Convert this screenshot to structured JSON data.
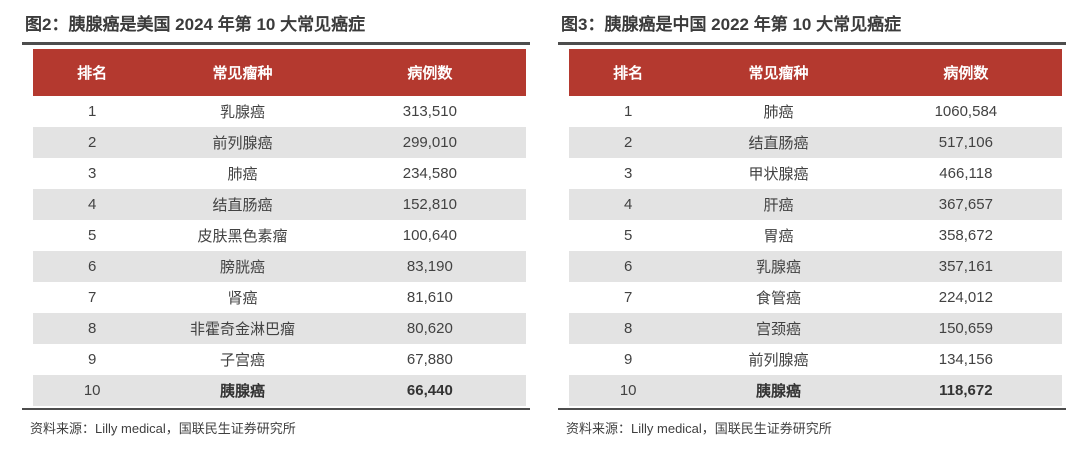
{
  "colors": {
    "header_bg": "#B4392F",
    "header_text": "#FFFFFF",
    "row_even_bg": "#E3E3E3",
    "row_odd_bg": "#FFFFFF",
    "cell_text": "#424242",
    "title_text": "#3B3B3B",
    "rule": "#4D4D4D",
    "source_text": "#3F3F3F"
  },
  "chart_data": [
    {
      "type": "table",
      "title": "图2：胰腺癌是美国 2024 年第 10 大常见癌症",
      "columns": [
        "排名",
        "常见瘤种",
        "病例数"
      ],
      "rows": [
        [
          "1",
          "乳腺癌",
          "313,510"
        ],
        [
          "2",
          "前列腺癌",
          "299,010"
        ],
        [
          "3",
          "肺癌",
          "234,580"
        ],
        [
          "4",
          "结直肠癌",
          "152,810"
        ],
        [
          "5",
          "皮肤黑色素瘤",
          "100,640"
        ],
        [
          "6",
          "膀胱癌",
          "83,190"
        ],
        [
          "7",
          "肾癌",
          "81,610"
        ],
        [
          "8",
          "非霍奇金淋巴瘤",
          "80,620"
        ],
        [
          "9",
          "子宫癌",
          "67,880"
        ],
        [
          "10",
          "胰腺癌",
          "66,440"
        ]
      ],
      "highlight_row_index": 9,
      "source": "资料来源：Lilly medical，国联民生证券研究所"
    },
    {
      "type": "table",
      "title": "图3：胰腺癌是中国 2022 年第 10 大常见癌症",
      "columns": [
        "排名",
        "常见瘤种",
        "病例数"
      ],
      "rows": [
        [
          "1",
          "肺癌",
          "1060,584"
        ],
        [
          "2",
          "结直肠癌",
          "517,106"
        ],
        [
          "3",
          "甲状腺癌",
          "466,118"
        ],
        [
          "4",
          "肝癌",
          "367,657"
        ],
        [
          "5",
          "胃癌",
          "358,672"
        ],
        [
          "6",
          "乳腺癌",
          "357,161"
        ],
        [
          "7",
          "食管癌",
          "224,012"
        ],
        [
          "8",
          "宫颈癌",
          "150,659"
        ],
        [
          "9",
          "前列腺癌",
          "134,156"
        ],
        [
          "10",
          "胰腺癌",
          "118,672"
        ]
      ],
      "highlight_row_index": 9,
      "source": "资料来源：Lilly medical，国联民生证券研究所"
    }
  ]
}
